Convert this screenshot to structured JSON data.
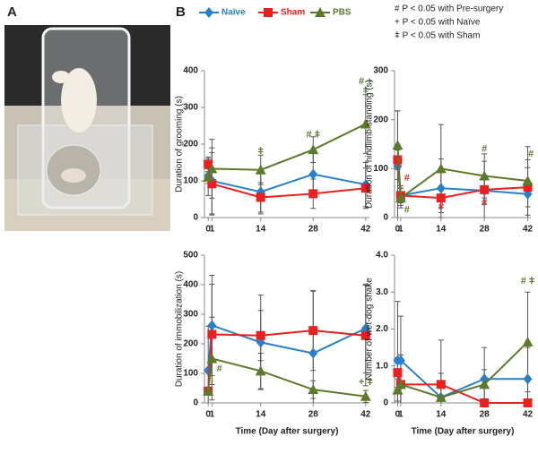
{
  "panel_labels": {
    "a": "A",
    "b": "B"
  },
  "legend_notes": [
    "# P < 0.05 with Pre-surgery",
    "+ P < 0.05 with Naïve",
    "ǂ P < 0.05 with Sham"
  ],
  "chart_data": [
    {
      "type": "line",
      "ylabel": "Duration of grooming (s)",
      "x": [
        0,
        1,
        14,
        28,
        42
      ],
      "xlim": [
        -1,
        43
      ],
      "xticks": [
        0,
        1,
        14,
        28,
        42
      ],
      "ylim": [
        0,
        400
      ],
      "yticks": [
        0,
        100,
        200,
        300,
        400
      ],
      "series": [
        {
          "name": "Naïve",
          "color": "#2a7fc9",
          "marker": "diamond",
          "values": [
            113,
            100,
            70,
            118,
            90
          ],
          "errors": [
            20,
            90,
            60,
            60,
            60
          ]
        },
        {
          "name": "Sham",
          "color": "#e8201f",
          "marker": "square",
          "values": [
            145,
            92,
            55,
            65,
            80
          ],
          "errors": [
            20,
            85,
            40,
            40,
            55
          ]
        },
        {
          "name": "PBS",
          "color": "#5d7a2c",
          "marker": "triangle",
          "values": [
            110,
            133,
            130,
            185,
            255
          ],
          "errors": [
            50,
            80,
            40,
            35,
            80
          ]
        }
      ],
      "annotations": [
        {
          "text": "ǂ",
          "x": 14,
          "y": 180,
          "color": "#5d7a2c"
        },
        {
          "text": "# ǂ",
          "x": 28,
          "y": 225,
          "color": "#5d7a2c"
        },
        {
          "text": "# +",
          "x": 42,
          "y": 370,
          "color": "#5d7a2c"
        },
        {
          "text": "ǂ",
          "x": 42,
          "y": 345,
          "color": "#5d7a2c"
        }
      ]
    },
    {
      "type": "line",
      "ylabel": "Duration of hindlimb standing (s)",
      "x": [
        0,
        1,
        14,
        28,
        42
      ],
      "xlim": [
        -1,
        43
      ],
      "xticks": [
        0,
        1,
        14,
        28,
        42
      ],
      "ylim": [
        0,
        300
      ],
      "yticks": [
        0,
        100,
        200,
        300
      ],
      "series": [
        {
          "name": "Naïve",
          "color": "#2a7fc9",
          "marker": "diamond",
          "values": [
            105,
            45,
            60,
            55,
            48
          ],
          "errors": [
            113,
            20,
            60,
            60,
            70
          ]
        },
        {
          "name": "Sham",
          "color": "#e8201f",
          "marker": "square",
          "values": [
            118,
            45,
            40,
            57,
            62
          ],
          "errors": [
            20,
            15,
            20,
            30,
            40
          ]
        },
        {
          "name": "PBS",
          "color": "#5d7a2c",
          "marker": "triangle",
          "values": [
            148,
            40,
            100,
            85,
            75
          ],
          "errors": [
            70,
            20,
            90,
            45,
            70
          ]
        }
      ],
      "annotations": [
        {
          "text": "#",
          "x": 3,
          "y": 80,
          "color": "#e8201f"
        },
        {
          "text": "#",
          "x": 3,
          "y": 15,
          "color": "#5d7a2c"
        },
        {
          "text": "#",
          "x": 14,
          "y": 22,
          "color": "#e8201f"
        },
        {
          "text": "#",
          "x": 28,
          "y": 30,
          "color": "#e8201f"
        },
        {
          "text": "#",
          "x": 28,
          "y": 140,
          "color": "#5d7a2c"
        },
        {
          "text": "#",
          "x": 43,
          "y": 130,
          "color": "#5d7a2c"
        }
      ]
    },
    {
      "type": "line",
      "ylabel": "Duration of immobilization (s)",
      "xlabel": "Time (Day after surgery)",
      "x": [
        0,
        1,
        14,
        28,
        42
      ],
      "xlim": [
        -1,
        43
      ],
      "xticks": [
        0,
        1,
        14,
        28,
        42
      ],
      "ylim": [
        0,
        500
      ],
      "yticks": [
        0,
        100,
        200,
        300,
        400,
        500
      ],
      "series": [
        {
          "name": "Naïve",
          "color": "#2a7fc9",
          "marker": "diamond",
          "values": [
            110,
            262,
            205,
            168,
            252
          ],
          "errors": [
            150,
            170,
            160,
            210,
            150
          ]
        },
        {
          "name": "Sham",
          "color": "#e8201f",
          "marker": "square",
          "values": [
            40,
            232,
            228,
            245,
            228
          ],
          "errors": [
            10,
            170,
            85,
            135,
            170
          ]
        },
        {
          "name": "PBS",
          "color": "#5d7a2c",
          "marker": "triangle",
          "values": [
            40,
            150,
            108,
            45,
            22
          ],
          "errors": [
            10,
            140,
            60,
            30,
            20
          ]
        }
      ],
      "annotations": [
        {
          "text": "#",
          "x": 3,
          "y": 115,
          "color": "#5d7a2c"
        },
        {
          "text": "+ ǂ",
          "x": 42,
          "y": 70,
          "color": "#5d7a2c"
        }
      ]
    },
    {
      "type": "line",
      "ylabel": "Number of wet-dog shake",
      "xlabel": "Time (Day after surgery)",
      "x": [
        0,
        1,
        14,
        28,
        42
      ],
      "xlim": [
        -1,
        43
      ],
      "xticks": [
        0,
        1,
        14,
        28,
        42
      ],
      "ylim": [
        0,
        4
      ],
      "yticks": [
        0,
        {
          "value": 1,
          "label": "1.0"
        },
        {
          "value": 2,
          "label": "2.0"
        },
        {
          "value": 3,
          "label": "3.0"
        },
        {
          "value": 4,
          "label": "4.0"
        }
      ],
      "series": [
        {
          "name": "Naïve",
          "color": "#2a7fc9",
          "marker": "diamond",
          "values": [
            1.15,
            1.15,
            0.15,
            0.65,
            0.65
          ],
          "errors": [
            1.6,
            1.2,
            1.55,
            0.85,
            0.85
          ]
        },
        {
          "name": "Sham",
          "color": "#e8201f",
          "marker": "square",
          "values": [
            0.82,
            0.5,
            0.5,
            0,
            0
          ],
          "errors": [
            0.4,
            0.8,
            0.3,
            0,
            0
          ]
        },
        {
          "name": "PBS",
          "color": "#5d7a2c",
          "marker": "triangle",
          "values": [
            0.35,
            0.5,
            0.15,
            0.5,
            1.65
          ],
          "errors": [
            0.3,
            0.8,
            0.05,
            0.4,
            1.35
          ]
        }
      ],
      "annotations": [
        {
          "text": "# ǂ",
          "x": 42,
          "y": 3.3,
          "color": "#5d7a2c"
        }
      ]
    }
  ]
}
